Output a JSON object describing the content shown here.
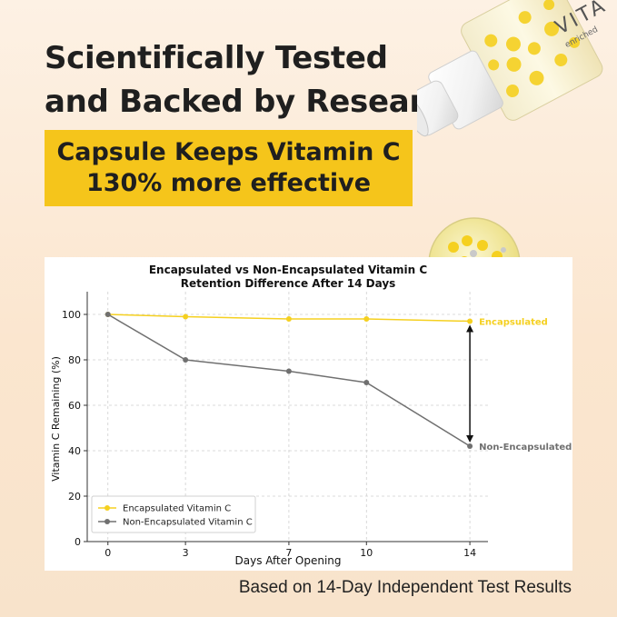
{
  "headline": {
    "line1": "Scientifically Tested",
    "line2": "and Backed by Research"
  },
  "banner": {
    "line1": "Capsule Keeps Vitamin C",
    "line2": "130% more effective",
    "color": "#f5c51b"
  },
  "product": {
    "bottle_label_1": "VITA",
    "bottle_label_2": "enriched"
  },
  "chart_data": {
    "type": "line",
    "title": "Encapsulated vs Non-Encapsulated Vitamin C",
    "subtitle": "Retention Difference After 14 Days",
    "xlabel": "Days After Opening",
    "ylabel": "Vitamin C Remaining (%)",
    "x": [
      0,
      3,
      7,
      10,
      14
    ],
    "xlim": [
      -0.8,
      14.7
    ],
    "ylim": [
      0,
      110
    ],
    "yticks": [
      0,
      20,
      40,
      60,
      80,
      100
    ],
    "grid": true,
    "legend_position": "lower-left",
    "series": [
      {
        "name": "Encapsulated Vitamin C",
        "values": [
          100,
          99,
          98,
          98,
          97
        ],
        "color": "#f5d020",
        "end_label": "Encapsulated"
      },
      {
        "name": "Non-Encapsulated Vitamin C",
        "values": [
          100,
          80,
          75,
          70,
          42
        ],
        "color": "#707070",
        "end_label": "Non-Encapsulated"
      }
    ],
    "annotation": "double-headed arrow between the two series at day 14"
  },
  "footnote": "Based on 14-Day Independent Test Results"
}
